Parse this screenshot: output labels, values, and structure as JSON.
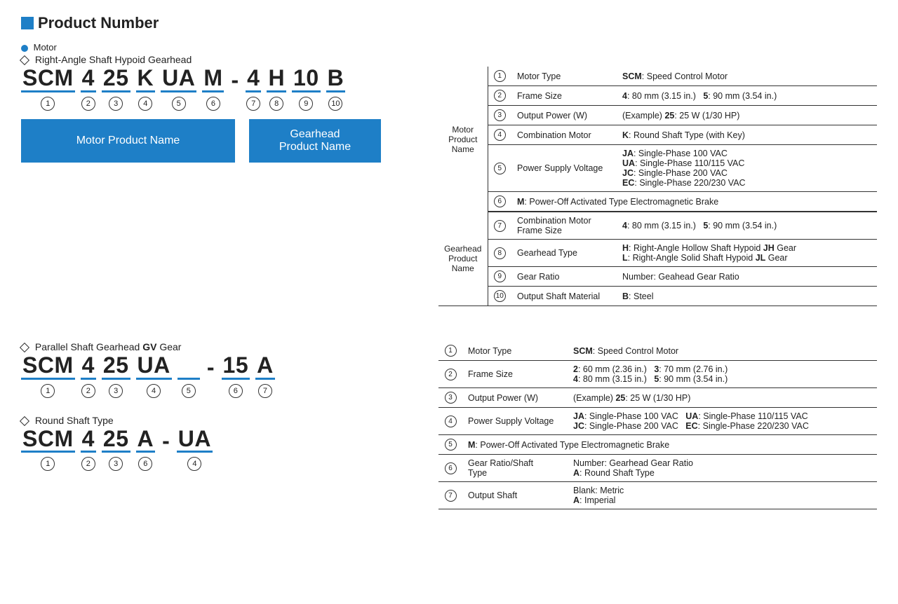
{
  "title": "Product Number",
  "motor_heading": "Motor",
  "hypoid_heading": "Right-Angle Shaft Hypoid Gearhead",
  "parallel_heading": "Parallel Shaft Gearhead ",
  "parallel_heading_bold": "GV",
  "parallel_heading_after": " Gear",
  "round_heading": "Round Shaft Type",
  "hypoid_segs": [
    "SCM",
    "4",
    "25",
    "K",
    "UA",
    "M",
    "-",
    "4",
    "H",
    "10",
    "B"
  ],
  "hypoid_nums": [
    "1",
    "2",
    "3",
    "4",
    "5",
    "6",
    "",
    "7",
    "8",
    "9",
    "10"
  ],
  "parallel_segs": [
    "SCM",
    "4",
    "25",
    "UA",
    "",
    "-",
    "15",
    "A"
  ],
  "parallel_nums": [
    "1",
    "2",
    "3",
    "4",
    "5",
    "",
    "6",
    "7"
  ],
  "round_segs": [
    "SCM",
    "4",
    "25",
    "A",
    "-",
    "UA"
  ],
  "round_nums": [
    "1",
    "2",
    "3",
    "6",
    "",
    "4"
  ],
  "label_motor": "Motor Product Name",
  "label_gear": "Gearhead\nProduct Name",
  "t1": {
    "grp1": "Motor\nProduct\nName",
    "grp2": "Gearhead\nProduct\nName",
    "r1l": "Motor Type",
    "r1r": "<b>SCM</b>: Speed Control Motor",
    "r2l": "Frame Size",
    "r2r": "<b>4</b>: 80 mm (3.15 in.)&nbsp;&nbsp;&nbsp;<b>5</b>: 90 mm (3.54 in.)",
    "r3l": "Output Power (W)",
    "r3r": "(Example) <b>25</b>: 25 W (1/30 HP)",
    "r4l": "Combination Motor",
    "r4r": "<b>K</b>: Round Shaft Type (with Key)",
    "r5l": "Power Supply Voltage",
    "r5r": "<b>JA</b>: Single-Phase 100 VAC<br><b>UA</b>: Single-Phase 110/115 VAC<br><b>JC</b>: Single-Phase 200 VAC<br><b>EC</b>: Single-Phase 220/230 VAC",
    "r6": "<b>M</b>: Power-Off Activated Type Electromagnetic Brake",
    "r7l": "Combination Motor\nFrame Size",
    "r7r": "<b>4</b>: 80 mm (3.15 in.)&nbsp;&nbsp;&nbsp;<b>5</b>: 90 mm (3.54 in.)",
    "r8l": "Gearhead Type",
    "r8r": "<b>H</b>: Right-Angle Hollow Shaft Hypoid <b>JH</b> Gear<br><b>L</b>: Right-Angle Solid Shaft Hypoid <b>JL</b> Gear",
    "r9l": "Gear Ratio",
    "r9r": "Number: Geahead Gear Ratio",
    "r10l": "Output Shaft Material",
    "r10r": "<b>B</b>: Steel"
  },
  "t2": {
    "r1l": "Motor Type",
    "r1r": "<b>SCM</b>: Speed Control Motor",
    "r2l": "Frame Size",
    "r2r": "<b>2</b>: 60 mm (2.36 in.)&nbsp;&nbsp;&nbsp;<b>3</b>: 70 mm (2.76 in.)<br><b>4</b>: 80 mm (3.15 in.)&nbsp;&nbsp;&nbsp;<b>5</b>: 90 mm (3.54 in.)",
    "r3l": "Output Power (W)",
    "r3r": "(Example) <b>25</b>: 25 W (1/30 HP)",
    "r4l": "Power Supply Voltage",
    "r4r": "<b>JA</b>: Single-Phase 100 VAC&nbsp;&nbsp;&nbsp;<b>UA</b>: Single-Phase 110/115 VAC<br><b>JC</b>: Single-Phase 200 VAC&nbsp;&nbsp;&nbsp;<b>EC</b>: Single-Phase 220/230 VAC",
    "r5": "<b>M</b>: Power-Off Activated Type Electromagnetic Brake",
    "r6l": "Gear Ratio/Shaft\nType",
    "r6r": "Number: Gearhead Gear Ratio<br><b>A</b>: Round Shaft Type",
    "r7l": "Output Shaft",
    "r7r": "Blank: Metric<br><b>A</b>: Imperial"
  },
  "colors": {
    "blue": "#1e7fc7",
    "text": "#222222",
    "border": "#333333"
  }
}
